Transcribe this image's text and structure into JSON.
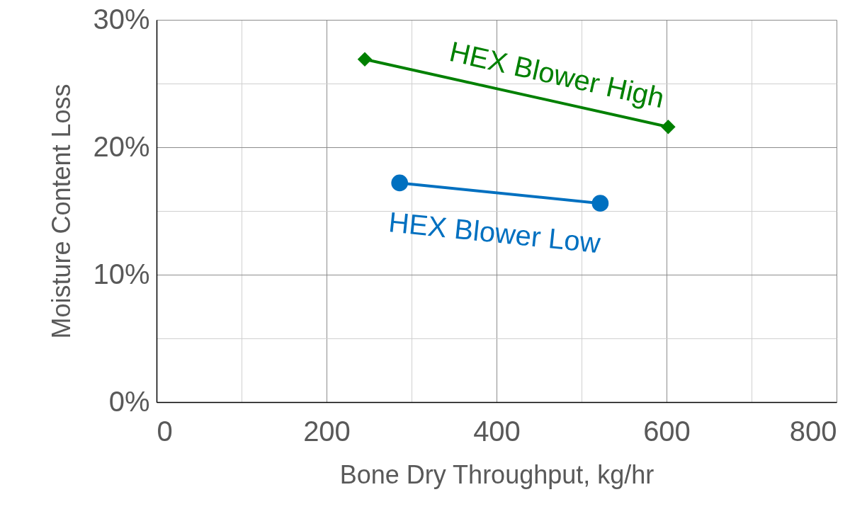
{
  "chart_data": {
    "type": "line",
    "xlabel": "Bone Dry Throughput, kg/hr",
    "ylabel": "Moisture Content Loss",
    "xlim": [
      0,
      800
    ],
    "ylim": [
      0,
      30
    ],
    "xticks": [
      0,
      {
        "value": 100,
        "label": null
      },
      200,
      {
        "value": 300,
        "label": null
      },
      400,
      {
        "value": 500,
        "label": null
      },
      600,
      {
        "value": 700,
        "label": null
      },
      800
    ],
    "yticks": [
      {
        "value": 0,
        "label": "0%"
      },
      {
        "value": 5,
        "label": null
      },
      {
        "value": 10,
        "label": "10%"
      },
      {
        "value": 15,
        "label": null
      },
      {
        "value": 20,
        "label": "20%"
      },
      {
        "value": 25,
        "label": null
      },
      {
        "value": 30,
        "label": "30%"
      }
    ],
    "grid": true,
    "series": [
      {
        "name": "HEX Blower High",
        "color": "#008000",
        "marker": "diamond",
        "x": [
          245,
          602
        ],
        "values": [
          26.9,
          21.6
        ]
      },
      {
        "name": "HEX Blower Low",
        "color": "#0070c0",
        "marker": "circle",
        "x": [
          286,
          522
        ],
        "values": [
          17.2,
          15.6
        ]
      }
    ]
  }
}
